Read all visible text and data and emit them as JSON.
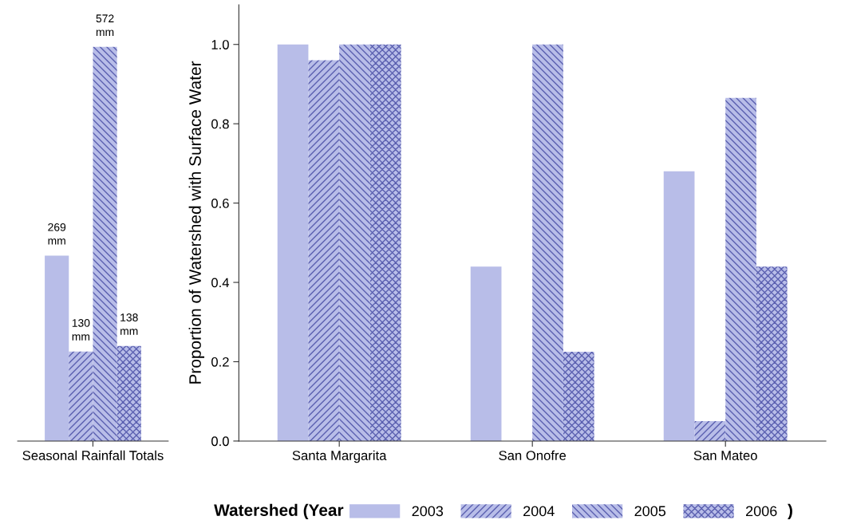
{
  "chart_data": [
    {
      "type": "bar",
      "categories": [
        "Seasonal Rainfall Totals"
      ],
      "tick_labels": "x",
      "series": [
        {
          "color": "#b8bde8",
          "values": [
            269
          ],
          "value_labels": [
            "269\nmm"
          ]
        },
        {
          "color": "#b8bde8",
          "values": [
            130
          ],
          "value_labels": [
            "130\nmm"
          ]
        },
        {
          "color": "#b8bde8",
          "values": [
            572
          ],
          "value_labels": [
            "572\nmm"
          ]
        },
        {
          "color": "#b8bde8",
          "values": [
            138
          ],
          "value_labels": [
            "138\nmm"
          ]
        }
      ]
    },
    {
      "type": "bar",
      "categories": [
        "Santa Margarita",
        "San Onofre",
        "San Mateo"
      ],
      "ylabel": "Proportion of Watershed with Surface Water",
      "ylim": [
        0,
        1.1
      ],
      "yticks": [
        {
          "value": 0,
          "label": "0.0"
        },
        0.2,
        0.4,
        0.6,
        0.8,
        {
          "value": 1,
          "label": "1.0"
        }
      ],
      "legend": "bottom",
      "legend_title": "Watershed (Year",
      "annotations": [
        ")"
      ],
      "series": [
        {
          "name": "2003",
          "color": "#b8bde8",
          "values": [
            1.0,
            0.44,
            0.68
          ]
        },
        {
          "name": "2004",
          "color": "#b8bde8",
          "values": [
            0.96,
            0,
            0.05
          ]
        },
        {
          "name": "2005",
          "color": "#b8bde8",
          "values": [
            1.0,
            1.0,
            0.865
          ]
        },
        {
          "name": "2006",
          "color": "#b8bde8",
          "values": [
            1.0,
            0.225,
            0.44
          ]
        }
      ]
    }
  ]
}
